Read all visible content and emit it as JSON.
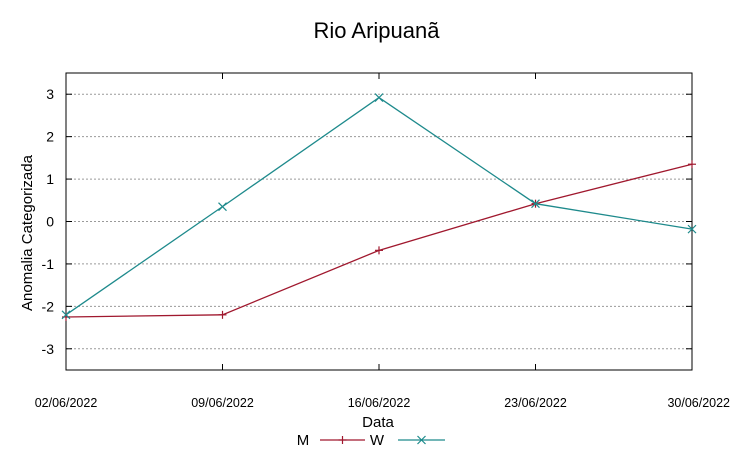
{
  "chart_data": {
    "type": "line",
    "title": "Rio Aripuanã",
    "xlabel": "Data",
    "ylabel": "Anomalia Categorizada",
    "categories": [
      "02/06/2022",
      "09/06/2022",
      "16/06/2022",
      "23/06/2022",
      "30/06/2022"
    ],
    "yticks": [
      3,
      2,
      1,
      0,
      -1,
      -2,
      -3
    ],
    "ylim": [
      -3.5,
      3.5
    ],
    "grid": true,
    "legend_position": "bottom",
    "series": [
      {
        "name": "M",
        "color": "#a0182e",
        "marker": "plus",
        "values": [
          -2.25,
          -2.2,
          -0.68,
          0.42,
          1.35
        ]
      },
      {
        "name": "W",
        "color": "#1e8a8c",
        "marker": "x",
        "values": [
          -2.2,
          0.35,
          2.92,
          0.42,
          -0.18
        ]
      }
    ]
  }
}
